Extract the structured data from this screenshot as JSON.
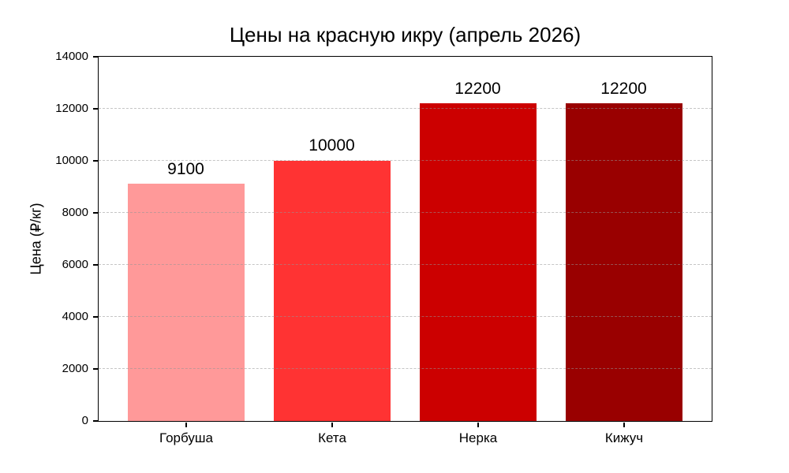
{
  "chart_data": {
    "type": "bar",
    "title": "Цены на красную икру (апрель 2026)",
    "xlabel": "",
    "ylabel": "Цена (₽/кг)",
    "categories": [
      "Горбуша",
      "Кета",
      "Нерка",
      "Кижуч"
    ],
    "values": [
      9100,
      10000,
      12200,
      12200
    ],
    "bar_value_labels": [
      "9100",
      "10000",
      "12200",
      "12200"
    ],
    "bar_colors": [
      "#ff9999",
      "#ff3333",
      "#cc0000",
      "#990000"
    ],
    "ylim": [
      0,
      14000
    ],
    "yticks": [
      0,
      2000,
      4000,
      6000,
      8000,
      10000,
      12000,
      14000
    ],
    "grid": "horizontal dashed, drawn over bars",
    "legend": "none",
    "colors": {
      "background": "#ffffff",
      "axis": "#000000",
      "gridline": "#c8c8c8",
      "text": "#000000"
    }
  }
}
